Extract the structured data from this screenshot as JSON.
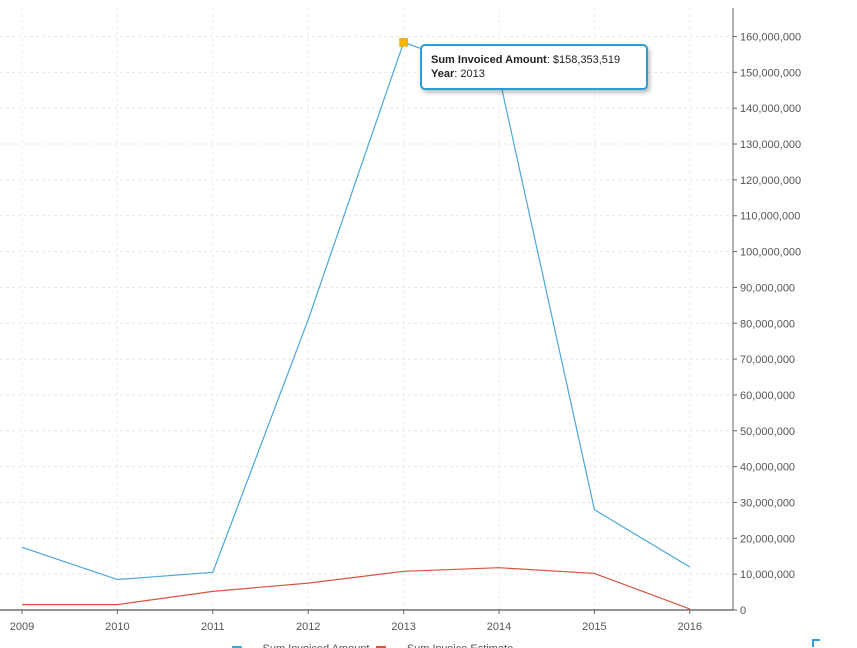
{
  "chart_data": {
    "type": "line",
    "categories": [
      "2009",
      "2010",
      "2011",
      "2012",
      "2013",
      "2014",
      "2015",
      "2016"
    ],
    "series": [
      {
        "name": "Sum Invoiced Amount",
        "color": "#4aa7d8",
        "values": [
          17500000,
          8500000,
          10500000,
          81000000,
          158353519,
          149000000,
          28000000,
          12000000
        ]
      },
      {
        "name": "Sum Invoice Estimate",
        "color": "#d9543f",
        "values": [
          1500000,
          1500000,
          5200000,
          7500000,
          10800000,
          11800000,
          10200000,
          300000
        ]
      }
    ],
    "ylim": [
      0,
      160000000
    ],
    "yticks": [
      "0",
      "10,000,000",
      "20,000,000",
      "30,000,000",
      "40,000,000",
      "50,000,000",
      "60,000,000",
      "70,000,000",
      "80,000,000",
      "90,000,000",
      "100,000,000",
      "110,000,000",
      "120,000,000",
      "130,000,000",
      "140,000,000",
      "150,000,000",
      "160,000,000"
    ],
    "ytick_values": [
      0,
      10000000,
      20000000,
      30000000,
      40000000,
      50000000,
      60000000,
      70000000,
      80000000,
      90000000,
      100000000,
      110000000,
      120000000,
      130000000,
      140000000,
      150000000,
      160000000
    ],
    "y_axis_position": "right",
    "grid": true,
    "legend_position": "bottom-center",
    "highlight": {
      "series_index": 0,
      "category_index": 4,
      "marker_color": "#f5b800"
    },
    "tooltip": {
      "field_label": "Sum Invoiced Amount",
      "field_value": "$158,353,519",
      "year_label": "Year",
      "year_value": "2013"
    }
  }
}
